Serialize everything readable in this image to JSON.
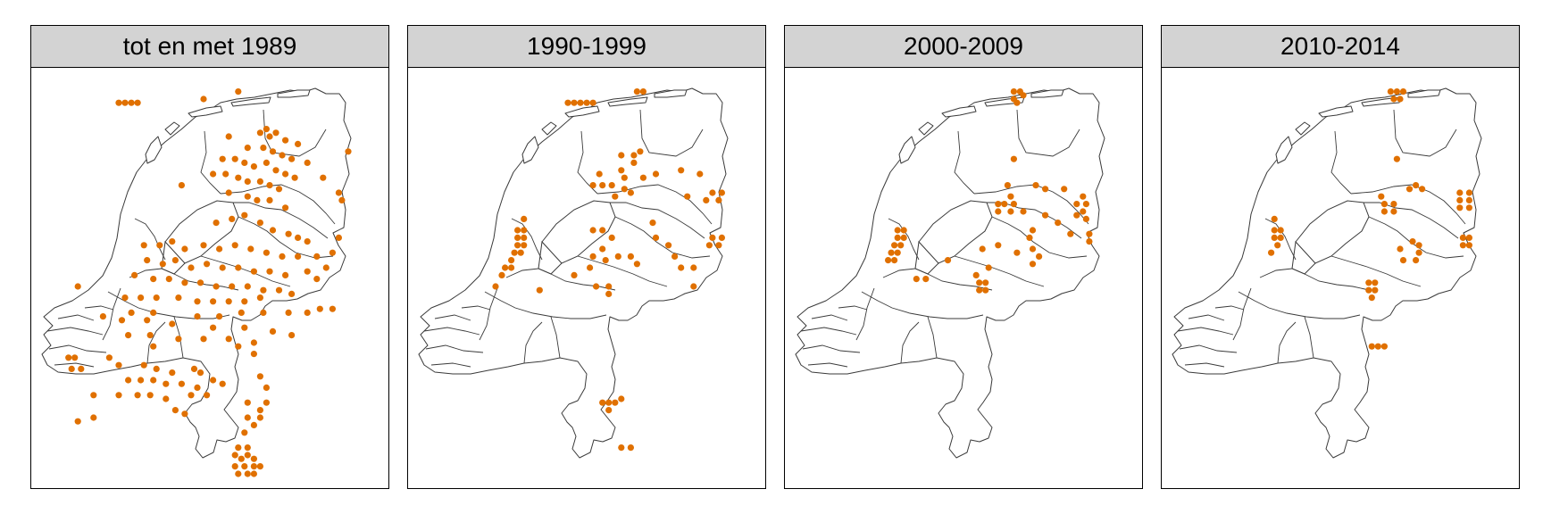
{
  "panels": [
    {
      "title": "tot en met 1989",
      "color": "#e07000",
      "points": [
        [
          0.25,
          0.06
        ],
        [
          0.27,
          0.06
        ],
        [
          0.29,
          0.06
        ],
        [
          0.31,
          0.06
        ],
        [
          0.52,
          0.05
        ],
        [
          0.63,
          0.03
        ],
        [
          0.6,
          0.15
        ],
        [
          0.7,
          0.14
        ],
        [
          0.72,
          0.13
        ],
        [
          0.73,
          0.15
        ],
        [
          0.75,
          0.14
        ],
        [
          0.78,
          0.16
        ],
        [
          0.82,
          0.17
        ],
        [
          0.98,
          0.19
        ],
        [
          0.66,
          0.18
        ],
        [
          0.71,
          0.18
        ],
        [
          0.74,
          0.19
        ],
        [
          0.77,
          0.2
        ],
        [
          0.8,
          0.21
        ],
        [
          0.85,
          0.22
        ],
        [
          0.58,
          0.21
        ],
        [
          0.62,
          0.21
        ],
        [
          0.65,
          0.22
        ],
        [
          0.68,
          0.23
        ],
        [
          0.72,
          0.22
        ],
        [
          0.75,
          0.24
        ],
        [
          0.78,
          0.25
        ],
        [
          0.81,
          0.26
        ],
        [
          0.9,
          0.26
        ],
        [
          0.55,
          0.25
        ],
        [
          0.59,
          0.25
        ],
        [
          0.63,
          0.26
        ],
        [
          0.66,
          0.27
        ],
        [
          0.7,
          0.27
        ],
        [
          0.73,
          0.28
        ],
        [
          0.76,
          0.29
        ],
        [
          0.95,
          0.3
        ],
        [
          0.96,
          0.32
        ],
        [
          0.45,
          0.28
        ],
        [
          0.6,
          0.3
        ],
        [
          0.66,
          0.31
        ],
        [
          0.69,
          0.32
        ],
        [
          0.73,
          0.32
        ],
        [
          0.78,
          0.34
        ],
        [
          0.56,
          0.38
        ],
        [
          0.61,
          0.37
        ],
        [
          0.65,
          0.36
        ],
        [
          0.7,
          0.38
        ],
        [
          0.74,
          0.4
        ],
        [
          0.79,
          0.41
        ],
        [
          0.82,
          0.42
        ],
        [
          0.85,
          0.43
        ],
        [
          0.95,
          0.42
        ],
        [
          0.33,
          0.44
        ],
        [
          0.38,
          0.44
        ],
        [
          0.42,
          0.43
        ],
        [
          0.46,
          0.45
        ],
        [
          0.52,
          0.44
        ],
        [
          0.57,
          0.45
        ],
        [
          0.62,
          0.44
        ],
        [
          0.67,
          0.45
        ],
        [
          0.72,
          0.46
        ],
        [
          0.77,
          0.47
        ],
        [
          0.82,
          0.47
        ],
        [
          0.88,
          0.47
        ],
        [
          0.93,
          0.46
        ],
        [
          0.34,
          0.48
        ],
        [
          0.39,
          0.49
        ],
        [
          0.43,
          0.48
        ],
        [
          0.48,
          0.5
        ],
        [
          0.53,
          0.49
        ],
        [
          0.58,
          0.5
        ],
        [
          0.63,
          0.5
        ],
        [
          0.68,
          0.51
        ],
        [
          0.73,
          0.51
        ],
        [
          0.78,
          0.52
        ],
        [
          0.85,
          0.51
        ],
        [
          0.91,
          0.5
        ],
        [
          0.3,
          0.52
        ],
        [
          0.36,
          0.53
        ],
        [
          0.41,
          0.53
        ],
        [
          0.46,
          0.54
        ],
        [
          0.51,
          0.54
        ],
        [
          0.56,
          0.55
        ],
        [
          0.61,
          0.55
        ],
        [
          0.66,
          0.55
        ],
        [
          0.71,
          0.56
        ],
        [
          0.76,
          0.56
        ],
        [
          0.88,
          0.53
        ],
        [
          0.27,
          0.58
        ],
        [
          0.32,
          0.58
        ],
        [
          0.37,
          0.58
        ],
        [
          0.44,
          0.58
        ],
        [
          0.5,
          0.59
        ],
        [
          0.55,
          0.59
        ],
        [
          0.6,
          0.59
        ],
        [
          0.65,
          0.59
        ],
        [
          0.7,
          0.58
        ],
        [
          0.8,
          0.57
        ],
        [
          0.29,
          0.62
        ],
        [
          0.36,
          0.62
        ],
        [
          0.5,
          0.63
        ],
        [
          0.57,
          0.63
        ],
        [
          0.64,
          0.62
        ],
        [
          0.71,
          0.62
        ],
        [
          0.79,
          0.62
        ],
        [
          0.85,
          0.62
        ],
        [
          0.89,
          0.61
        ],
        [
          0.93,
          0.61
        ],
        [
          0.12,
          0.55
        ],
        [
          0.2,
          0.63
        ],
        [
          0.26,
          0.64
        ],
        [
          0.34,
          0.64
        ],
        [
          0.42,
          0.65
        ],
        [
          0.55,
          0.66
        ],
        [
          0.65,
          0.66
        ],
        [
          0.74,
          0.67
        ],
        [
          0.8,
          0.68
        ],
        [
          0.28,
          0.68
        ],
        [
          0.35,
          0.68
        ],
        [
          0.44,
          0.69
        ],
        [
          0.52,
          0.69
        ],
        [
          0.6,
          0.69
        ],
        [
          0.68,
          0.7
        ],
        [
          0.36,
          0.71
        ],
        [
          0.63,
          0.71
        ],
        [
          0.68,
          0.73
        ],
        [
          0.09,
          0.74
        ],
        [
          0.11,
          0.74
        ],
        [
          0.1,
          0.77
        ],
        [
          0.13,
          0.77
        ],
        [
          0.22,
          0.74
        ],
        [
          0.25,
          0.76
        ],
        [
          0.33,
          0.76
        ],
        [
          0.37,
          0.77
        ],
        [
          0.42,
          0.78
        ],
        [
          0.49,
          0.77
        ],
        [
          0.51,
          0.78
        ],
        [
          0.28,
          0.8
        ],
        [
          0.32,
          0.8
        ],
        [
          0.36,
          0.8
        ],
        [
          0.4,
          0.81
        ],
        [
          0.45,
          0.81
        ],
        [
          0.5,
          0.82
        ],
        [
          0.55,
          0.8
        ],
        [
          0.58,
          0.81
        ],
        [
          0.7,
          0.79
        ],
        [
          0.17,
          0.84
        ],
        [
          0.25,
          0.84
        ],
        [
          0.31,
          0.84
        ],
        [
          0.35,
          0.84
        ],
        [
          0.4,
          0.85
        ],
        [
          0.48,
          0.84
        ],
        [
          0.53,
          0.84
        ],
        [
          0.72,
          0.82
        ],
        [
          0.43,
          0.88
        ],
        [
          0.46,
          0.89
        ],
        [
          0.66,
          0.86
        ],
        [
          0.72,
          0.86
        ],
        [
          0.7,
          0.88
        ],
        [
          0.66,
          0.9
        ],
        [
          0.12,
          0.91
        ],
        [
          0.17,
          0.9
        ],
        [
          0.7,
          0.9
        ],
        [
          0.68,
          0.92
        ],
        [
          0.65,
          0.94
        ],
        [
          0.63,
          0.98
        ],
        [
          0.66,
          0.98
        ],
        [
          0.62,
          1.0
        ],
        [
          0.64,
          1.01
        ],
        [
          0.66,
          1.0
        ],
        [
          0.68,
          1.01
        ],
        [
          0.62,
          1.03
        ],
        [
          0.65,
          1.03
        ],
        [
          0.68,
          1.03
        ],
        [
          0.7,
          1.03
        ],
        [
          0.63,
          1.05
        ],
        [
          0.66,
          1.05
        ],
        [
          0.68,
          1.05
        ]
      ]
    },
    {
      "title": "1990-1999",
      "color": "#e07000",
      "points": [
        [
          0.48,
          0.06
        ],
        [
          0.5,
          0.06
        ],
        [
          0.52,
          0.06
        ],
        [
          0.54,
          0.06
        ],
        [
          0.56,
          0.06
        ],
        [
          0.7,
          0.03
        ],
        [
          0.72,
          0.03
        ],
        [
          0.65,
          0.2
        ],
        [
          0.69,
          0.2
        ],
        [
          0.71,
          0.19
        ],
        [
          0.69,
          0.22
        ],
        [
          0.65,
          0.24
        ],
        [
          0.58,
          0.25
        ],
        [
          0.66,
          0.26
        ],
        [
          0.72,
          0.26
        ],
        [
          0.76,
          0.25
        ],
        [
          0.84,
          0.24
        ],
        [
          0.9,
          0.25
        ],
        [
          0.56,
          0.28
        ],
        [
          0.59,
          0.28
        ],
        [
          0.62,
          0.28
        ],
        [
          0.66,
          0.29
        ],
        [
          0.68,
          0.3
        ],
        [
          0.63,
          0.31
        ],
        [
          0.94,
          0.3
        ],
        [
          0.97,
          0.3
        ],
        [
          0.96,
          0.32
        ],
        [
          0.92,
          0.32
        ],
        [
          0.86,
          0.31
        ],
        [
          0.34,
          0.37
        ],
        [
          0.32,
          0.4
        ],
        [
          0.34,
          0.4
        ],
        [
          0.32,
          0.42
        ],
        [
          0.34,
          0.42
        ],
        [
          0.32,
          0.44
        ],
        [
          0.34,
          0.44
        ],
        [
          0.31,
          0.46
        ],
        [
          0.33,
          0.46
        ],
        [
          0.3,
          0.48
        ],
        [
          0.28,
          0.5
        ],
        [
          0.3,
          0.5
        ],
        [
          0.27,
          0.52
        ],
        [
          0.56,
          0.4
        ],
        [
          0.59,
          0.4
        ],
        [
          0.62,
          0.42
        ],
        [
          0.75,
          0.38
        ],
        [
          0.76,
          0.42
        ],
        [
          0.8,
          0.44
        ],
        [
          0.94,
          0.42
        ],
        [
          0.97,
          0.42
        ],
        [
          0.96,
          0.44
        ],
        [
          0.93,
          0.44
        ],
        [
          0.59,
          0.45
        ],
        [
          0.56,
          0.47
        ],
        [
          0.6,
          0.48
        ],
        [
          0.64,
          0.47
        ],
        [
          0.68,
          0.47
        ],
        [
          0.7,
          0.49
        ],
        [
          0.82,
          0.47
        ],
        [
          0.84,
          0.5
        ],
        [
          0.88,
          0.5
        ],
        [
          0.5,
          0.52
        ],
        [
          0.55,
          0.5
        ],
        [
          0.57,
          0.55
        ],
        [
          0.61,
          0.55
        ],
        [
          0.61,
          0.57
        ],
        [
          0.88,
          0.55
        ],
        [
          0.25,
          0.55
        ],
        [
          0.39,
          0.56
        ],
        [
          0.59,
          0.86
        ],
        [
          0.61,
          0.86
        ],
        [
          0.63,
          0.86
        ],
        [
          0.61,
          0.88
        ],
        [
          0.65,
          0.85
        ],
        [
          0.65,
          0.98
        ],
        [
          0.68,
          0.98
        ]
      ]
    },
    {
      "title": "2000-2009",
      "color": "#e07000",
      "points": [
        [
          0.7,
          0.03
        ],
        [
          0.72,
          0.03
        ],
        [
          0.7,
          0.05
        ],
        [
          0.73,
          0.04
        ],
        [
          0.71,
          0.06
        ],
        [
          0.7,
          0.21
        ],
        [
          0.68,
          0.28
        ],
        [
          0.77,
          0.28
        ],
        [
          0.8,
          0.29
        ],
        [
          0.86,
          0.29
        ],
        [
          0.69,
          0.31
        ],
        [
          0.92,
          0.31
        ],
        [
          0.93,
          0.33
        ],
        [
          0.9,
          0.33
        ],
        [
          0.92,
          0.35
        ],
        [
          0.93,
          0.37
        ],
        [
          0.9,
          0.36
        ],
        [
          0.65,
          0.33
        ],
        [
          0.67,
          0.33
        ],
        [
          0.7,
          0.33
        ],
        [
          0.69,
          0.35
        ],
        [
          0.65,
          0.35
        ],
        [
          0.73,
          0.35
        ],
        [
          0.8,
          0.36
        ],
        [
          0.84,
          0.38
        ],
        [
          0.76,
          0.4
        ],
        [
          0.88,
          0.41
        ],
        [
          0.94,
          0.41
        ],
        [
          0.33,
          0.4
        ],
        [
          0.35,
          0.4
        ],
        [
          0.33,
          0.42
        ],
        [
          0.35,
          0.42
        ],
        [
          0.32,
          0.44
        ],
        [
          0.34,
          0.44
        ],
        [
          0.31,
          0.46
        ],
        [
          0.33,
          0.46
        ],
        [
          0.3,
          0.48
        ],
        [
          0.32,
          0.48
        ],
        [
          0.6,
          0.45
        ],
        [
          0.65,
          0.44
        ],
        [
          0.75,
          0.42
        ],
        [
          0.76,
          0.45
        ],
        [
          0.71,
          0.46
        ],
        [
          0.78,
          0.47
        ],
        [
          0.76,
          0.49
        ],
        [
          0.94,
          0.43
        ],
        [
          0.62,
          0.5
        ],
        [
          0.58,
          0.52
        ],
        [
          0.59,
          0.54
        ],
        [
          0.61,
          0.54
        ],
        [
          0.59,
          0.56
        ],
        [
          0.61,
          0.56
        ],
        [
          0.49,
          0.48
        ],
        [
          0.39,
          0.53
        ],
        [
          0.42,
          0.53
        ]
      ]
    },
    {
      "title": "2010-2014",
      "color": "#e07000",
      "points": [
        [
          0.7,
          0.03
        ],
        [
          0.72,
          0.03
        ],
        [
          0.74,
          0.03
        ],
        [
          0.71,
          0.05
        ],
        [
          0.73,
          0.05
        ],
        [
          0.72,
          0.21
        ],
        [
          0.78,
          0.28
        ],
        [
          0.8,
          0.29
        ],
        [
          0.76,
          0.29
        ],
        [
          0.92,
          0.3
        ],
        [
          0.95,
          0.3
        ],
        [
          0.92,
          0.32
        ],
        [
          0.95,
          0.32
        ],
        [
          0.92,
          0.34
        ],
        [
          0.95,
          0.34
        ],
        [
          0.68,
          0.33
        ],
        [
          0.71,
          0.33
        ],
        [
          0.68,
          0.35
        ],
        [
          0.71,
          0.35
        ],
        [
          0.67,
          0.31
        ],
        [
          0.33,
          0.37
        ],
        [
          0.33,
          0.4
        ],
        [
          0.35,
          0.4
        ],
        [
          0.33,
          0.42
        ],
        [
          0.35,
          0.42
        ],
        [
          0.34,
          0.44
        ],
        [
          0.32,
          0.46
        ],
        [
          0.77,
          0.43
        ],
        [
          0.79,
          0.44
        ],
        [
          0.79,
          0.46
        ],
        [
          0.78,
          0.48
        ],
        [
          0.74,
          0.48
        ],
        [
          0.73,
          0.45
        ],
        [
          0.93,
          0.42
        ],
        [
          0.95,
          0.42
        ],
        [
          0.93,
          0.44
        ],
        [
          0.95,
          0.44
        ],
        [
          0.63,
          0.54
        ],
        [
          0.65,
          0.54
        ],
        [
          0.63,
          0.56
        ],
        [
          0.65,
          0.56
        ],
        [
          0.64,
          0.58
        ],
        [
          0.66,
          0.71
        ],
        [
          0.68,
          0.71
        ],
        [
          0.64,
          0.71
        ]
      ]
    }
  ]
}
